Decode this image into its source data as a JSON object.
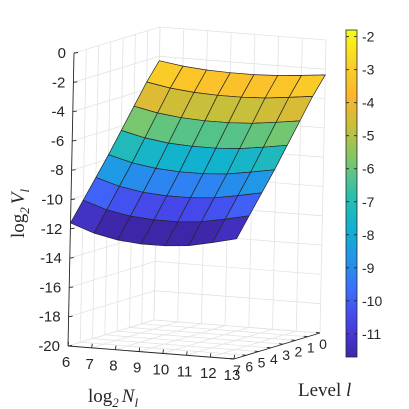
{
  "chart_data": {
    "type": "surface",
    "title": "",
    "xlabel": "log2 Nl",
    "xlabel_parts": {
      "base": "log",
      "sub": "2",
      "var": "N",
      "var_sub": "l"
    },
    "ylabel": "Level l",
    "zlabel": "log2 Vl",
    "zlabel_parts": {
      "base": "log",
      "sub": "2",
      "var": "V",
      "var_sub": "l"
    },
    "x_ticks": [
      "6",
      "7",
      "8",
      "9",
      "10",
      "11",
      "12",
      "13"
    ],
    "y_ticks": [
      "7",
      "6",
      "5",
      "4",
      "3",
      "2",
      "1",
      "0"
    ],
    "z_ticks": [
      "0",
      "-2",
      "-4",
      "-6",
      "-8",
      "-10",
      "-12",
      "-14",
      "-16",
      "-18",
      "-20"
    ],
    "xlim": [
      6,
      13
    ],
    "ylim": [
      0,
      7
    ],
    "zlim": [
      -20,
      0
    ],
    "x": [
      6,
      7,
      8,
      9,
      10,
      11,
      12,
      13
    ],
    "y": [
      0,
      1,
      2,
      3,
      4,
      5,
      6,
      7
    ],
    "z_by_level": [
      -2.3,
      -3.5,
      -4.9,
      -6.3,
      -7.7,
      -9.0,
      -10.3,
      -11.6
    ],
    "z_curvature_note_x": [
      0.0,
      -0.6,
      -0.95,
      -1.1,
      -1.1,
      -0.95,
      -0.6,
      -0.2
    ],
    "colorbar": {
      "colormap": "parula",
      "limits": [
        -11.7,
        -1.8
      ],
      "ticks": [
        "-2",
        "-3",
        "-4",
        "-5",
        "-6",
        "-7",
        "-8",
        "-9",
        "-10",
        "-11"
      ],
      "colors": [
        "#3e26a8",
        "#4741e4",
        "#3d6bfe",
        "#2196e9",
        "#12b1cf",
        "#2ec0a8",
        "#7ac66c",
        "#c6bf3a",
        "#fdb52e",
        "#f9d327",
        "#f9fb15"
      ]
    },
    "grid": true,
    "view": "3d-perspective"
  }
}
